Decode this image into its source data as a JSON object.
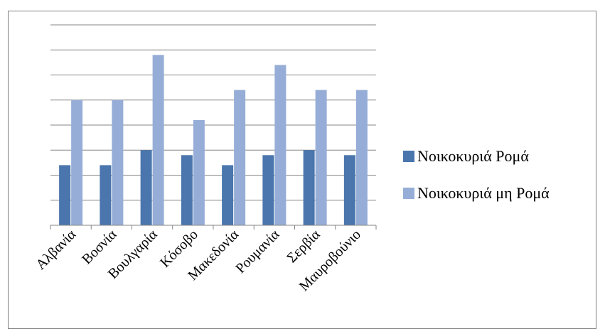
{
  "chart_data": {
    "type": "bar",
    "categories": [
      "Αλβανία",
      "Βοσνία",
      "Βουλγαρία",
      "Κόσοβο",
      "Μακεδονία",
      "Ρουμανία",
      "Σερβία",
      "Μαυροβούνιο"
    ],
    "series": [
      {
        "name": "Νοικοκυριά Ρομά",
        "values": [
          2.4,
          2.4,
          3.0,
          2.8,
          2.4,
          2.8,
          3.0,
          2.8
        ],
        "color": "#4a76ad"
      },
      {
        "name": "Νοικοκυριά μη Ρομά",
        "values": [
          5.0,
          5.0,
          6.8,
          4.2,
          5.4,
          6.4,
          5.4,
          5.4
        ],
        "color": "#96aed7"
      }
    ],
    "ylim": [
      0,
      8
    ],
    "grid": true,
    "legend": "right"
  }
}
